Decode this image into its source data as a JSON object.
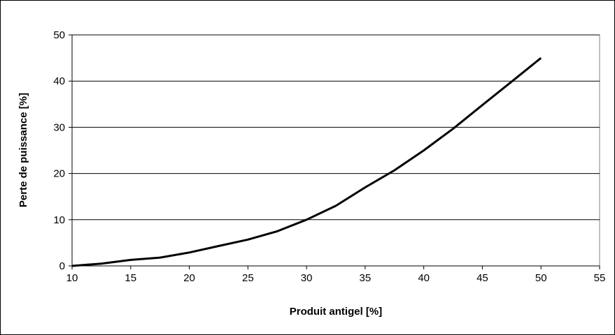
{
  "chart_data": {
    "type": "line",
    "title": "",
    "xlabel": "Produit antigel [%]",
    "ylabel": "Perte de puissance [%]",
    "xlim": [
      10,
      55
    ],
    "ylim": [
      0,
      50
    ],
    "xticks": [
      10,
      15,
      20,
      25,
      30,
      35,
      40,
      45,
      50,
      55
    ],
    "yticks": [
      0,
      10,
      20,
      30,
      40,
      50
    ],
    "grid": "horizontal",
    "legend": "none",
    "series": [
      {
        "color": "#000000",
        "x": [
          10,
          12.5,
          15,
          17.5,
          20,
          22.5,
          25,
          27.5,
          30,
          32.5,
          35,
          37.5,
          40,
          42.5,
          45,
          47.5,
          50
        ],
        "y": [
          0,
          0.5,
          1.3,
          1.8,
          2.9,
          4.3,
          5.7,
          7.5,
          10,
          13,
          17,
          20.7,
          25,
          29.7,
          34.8,
          39.9,
          45
        ]
      }
    ]
  }
}
